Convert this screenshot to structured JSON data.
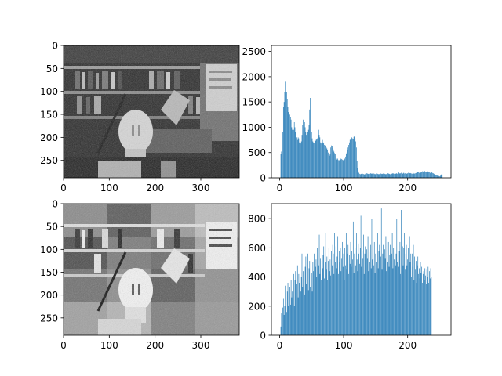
{
  "figure": {
    "background": "#ffffff"
  },
  "chart_data": [
    {
      "id": "img-original",
      "type": "image",
      "description_of_content": "grayscale photo: bookshelves, desk lamp, plaster head sculpture",
      "xlim": [
        0,
        384
      ],
      "ylim": [
        288,
        0
      ],
      "xticks": [
        {
          "value": 0,
          "label": "0"
        },
        {
          "value": 100,
          "label": "100"
        },
        {
          "value": 200,
          "label": "200"
        },
        {
          "value": 300,
          "label": "300"
        }
      ],
      "yticks": [
        {
          "value": 0,
          "label": "0"
        },
        {
          "value": 50,
          "label": "50"
        },
        {
          "value": 100,
          "label": "100"
        },
        {
          "value": 150,
          "label": "150"
        },
        {
          "value": 200,
          "label": "200"
        },
        {
          "value": 250,
          "label": "250"
        }
      ]
    },
    {
      "id": "hist-original",
      "type": "bar",
      "color": "#1f77b4",
      "xlim": [
        -12.75,
        267.75
      ],
      "ylim": [
        0,
        2618
      ],
      "xticks": [
        {
          "value": 0,
          "label": "0"
        },
        {
          "value": 100,
          "label": "100"
        },
        {
          "value": 200,
          "label": "200"
        }
      ],
      "yticks": [
        {
          "value": 0,
          "label": "0"
        },
        {
          "value": 500,
          "label": "500"
        },
        {
          "value": 1000,
          "label": "1000"
        },
        {
          "value": 1500,
          "label": "1500"
        },
        {
          "value": 2000,
          "label": "2000"
        },
        {
          "value": 2500,
          "label": "2500"
        }
      ],
      "x_start": 0,
      "values": [
        0,
        0,
        480,
        520,
        560,
        900,
        1400,
        1500,
        1700,
        1900,
        2080,
        1700,
        1550,
        1400,
        1300,
        1380,
        1250,
        1200,
        1150,
        1000,
        950,
        900,
        950,
        1100,
        1000,
        900,
        850,
        800,
        750,
        800,
        780,
        700,
        650,
        680,
        720,
        850,
        1050,
        1150,
        1200,
        1100,
        1000,
        900,
        850,
        800,
        900,
        950,
        1050,
        1350,
        1580,
        1100,
        900,
        780,
        720,
        700,
        690,
        700,
        730,
        750,
        770,
        780,
        800,
        950,
        850,
        800,
        700,
        680,
        720,
        750,
        700,
        680,
        650,
        640,
        620,
        600,
        580,
        550,
        500,
        470,
        440,
        480,
        600,
        640,
        620,
        590,
        560,
        520,
        490,
        470,
        430,
        380,
        360,
        380,
        350,
        350,
        340,
        360,
        380,
        370,
        360,
        350,
        350,
        360,
        380,
        420,
        470,
        500,
        560,
        600,
        650,
        700,
        750,
        770,
        780,
        800,
        780,
        760,
        810,
        830,
        780,
        720,
        600,
        330,
        200,
        130,
        100,
        80,
        70,
        75,
        80,
        85,
        80,
        75,
        70,
        65,
        80,
        85,
        90,
        85,
        80,
        75,
        70,
        80,
        90,
        85,
        80,
        85,
        90,
        85,
        80,
        70,
        75,
        80,
        85,
        80,
        75,
        70,
        75,
        90,
        85,
        80,
        75,
        80,
        85,
        90,
        80,
        75,
        70,
        75,
        80,
        90,
        85,
        80,
        75,
        70,
        75,
        80,
        85,
        90,
        85,
        80,
        75,
        80,
        85,
        90,
        80,
        85,
        110,
        90,
        85,
        90,
        100,
        85,
        80,
        90,
        100,
        85,
        90,
        95,
        80,
        85,
        90,
        100,
        85,
        90,
        95,
        90,
        85,
        80,
        90,
        95,
        80,
        85,
        90,
        95,
        100,
        110,
        120,
        110,
        100,
        90,
        100,
        110,
        120,
        130,
        115,
        130,
        140,
        130,
        120,
        110,
        120,
        130,
        125,
        115,
        110,
        100,
        90,
        100,
        110,
        95,
        90,
        80,
        70,
        60,
        55,
        50,
        45,
        40,
        40,
        35,
        30,
        40,
        60,
        70,
        65
      ]
    },
    {
      "id": "img-equalized",
      "type": "image",
      "description_of_content": "contrast-equalized version of the same photo, with visible block tiling",
      "xlim": [
        0,
        384
      ],
      "ylim": [
        288,
        0
      ],
      "xticks": [
        {
          "value": 0,
          "label": "0"
        },
        {
          "value": 100,
          "label": "100"
        },
        {
          "value": 200,
          "label": "200"
        },
        {
          "value": 300,
          "label": "300"
        }
      ],
      "yticks": [
        {
          "value": 0,
          "label": "0"
        },
        {
          "value": 50,
          "label": "50"
        },
        {
          "value": 100,
          "label": "100"
        },
        {
          "value": 150,
          "label": "150"
        },
        {
          "value": 200,
          "label": "200"
        },
        {
          "value": 250,
          "label": "250"
        }
      ]
    },
    {
      "id": "hist-equalized",
      "type": "bar",
      "color": "#1f77b4",
      "xlim": [
        -12.75,
        267.75
      ],
      "ylim": [
        0,
        903
      ],
      "xticks": [
        {
          "value": 0,
          "label": "0"
        },
        {
          "value": 100,
          "label": "100"
        },
        {
          "value": 200,
          "label": "200"
        }
      ],
      "yticks": [
        {
          "value": 0,
          "label": "0"
        },
        {
          "value": 200,
          "label": "200"
        },
        {
          "value": 400,
          "label": "400"
        },
        {
          "value": 600,
          "label": "600"
        },
        {
          "value": 800,
          "label": "800"
        }
      ],
      "x_start": 0,
      "values": [
        0,
        0,
        60,
        150,
        110,
        190,
        250,
        140,
        200,
        340,
        240,
        160,
        300,
        360,
        200,
        270,
        330,
        210,
        380,
        260,
        300,
        350,
        420,
        200,
        380,
        440,
        300,
        350,
        480,
        260,
        420,
        360,
        500,
        300,
        400,
        560,
        330,
        440,
        510,
        280,
        470,
        540,
        350,
        420,
        560,
        310,
        460,
        510,
        330,
        580,
        430,
        300,
        500,
        440,
        560,
        350,
        470,
        520,
        400,
        600,
        360,
        480,
        690,
        420,
        530,
        380,
        510,
        460,
        550,
        610,
        390,
        500,
        700,
        450,
        540,
        380,
        510,
        600,
        440,
        520,
        410,
        580,
        480,
        620,
        560,
        420,
        700,
        500,
        610,
        460,
        540,
        680,
        420,
        580,
        500,
        600,
        440,
        530,
        640,
        470,
        560,
        380,
        600,
        480,
        700,
        450,
        560,
        620,
        420,
        550,
        490,
        640,
        470,
        580,
        520,
        780,
        430,
        560,
        600,
        480,
        700,
        520,
        440,
        630,
        560,
        490,
        600,
        820,
        470,
        580,
        530,
        690,
        420,
        560,
        610,
        480,
        590,
        530,
        680,
        440,
        570,
        500,
        620,
        460,
        800,
        520,
        590,
        480,
        640,
        430,
        560,
        610,
        500,
        700,
        460,
        580,
        620,
        490,
        540,
        870,
        450,
        560,
        620,
        480,
        590,
        530,
        680,
        440,
        600,
        500,
        640,
        470,
        550,
        620,
        400,
        560,
        700,
        460,
        600,
        520,
        640,
        480,
        560,
        800,
        500,
        620,
        470,
        580,
        640,
        420,
        860,
        560,
        610,
        480,
        600,
        700,
        450,
        560,
        620,
        480,
        520,
        600,
        440,
        680,
        500,
        560,
        400,
        560,
        470,
        620,
        380,
        540,
        450,
        510,
        360,
        480,
        540,
        420,
        460,
        390,
        500,
        430,
        470,
        360,
        420,
        440,
        380,
        460,
        410,
        350,
        450,
        400,
        470,
        360,
        440,
        390,
        460,
        400
      ]
    }
  ]
}
